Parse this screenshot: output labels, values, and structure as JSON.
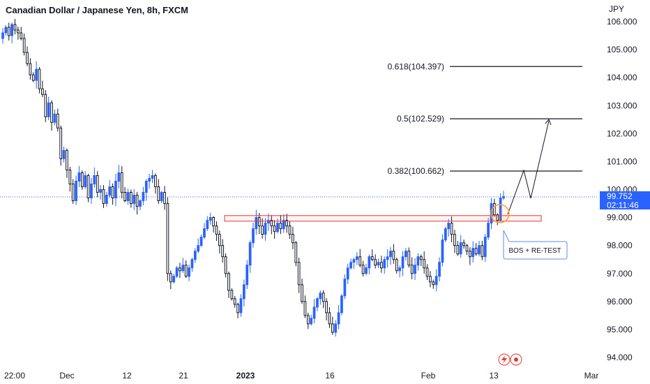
{
  "header": {
    "symbol_title": "Canadian Dollar / Japanese Yen, 8h, FXCM",
    "currency": "JPY"
  },
  "price_tag": {
    "price": "99.752",
    "countdown": "02:11:46"
  },
  "colors": {
    "up": "#2962ff",
    "down": "#131722",
    "zone": "#e53935",
    "bubble": "#5b8def",
    "circle": "#f3a33d"
  },
  "chart_data": {
    "type": "candlestick",
    "title": "Canadian Dollar / Japanese Yen, 8h, FXCM",
    "y_unit": "JPY",
    "ylim": [
      93.6,
      106.5
    ],
    "y_ticks": [
      "106.000",
      "105.000",
      "104.000",
      "103.000",
      "102.000",
      "101.000",
      "100.000",
      "99.000",
      "98.000",
      "97.000",
      "96.000",
      "95.000",
      "94.000"
    ],
    "x_ticks": [
      "22:00",
      "Dec",
      "12",
      "21",
      "2023",
      "16",
      "Feb",
      "13",
      "Mar"
    ],
    "last_price": 99.752,
    "closes": [
      105.6,
      105.8,
      105.5,
      105.9,
      105.7,
      105.6,
      105.4,
      104.9,
      104.5,
      104.1,
      103.9,
      104.3,
      103.6,
      103.4,
      102.6,
      103.1,
      102.4,
      102.7,
      102.2,
      101.1,
      101.4,
      100.7,
      100.2,
      99.6,
      100.3,
      100.6,
      100.1,
      100.5,
      99.7,
      100.2,
      100.5,
      99.9,
      100.0,
      99.5,
      99.8,
      100.1,
      99.7,
      100.3,
      100.6,
      99.9,
      99.6,
      99.9,
      99.5,
      99.8,
      99.4,
      99.6,
      99.9,
      100.3,
      100.4,
      100.5,
      100.1,
      99.6,
      99.9,
      99.5,
      97.0,
      96.7,
      96.9,
      97.2,
      97.1,
      97.3,
      96.9,
      97.2,
      97.5,
      97.8,
      98.0,
      98.3,
      98.6,
      98.9,
      99.0,
      98.7,
      98.4,
      98.0,
      97.6,
      97.0,
      96.4,
      96.1,
      95.9,
      95.6,
      96.1,
      96.6,
      97.3,
      98.1,
      98.6,
      99.0,
      98.7,
      98.4,
      98.8,
      98.9,
      98.7,
      98.5,
      98.8,
      98.6,
      98.9,
      98.7,
      98.4,
      98.1,
      97.4,
      96.6,
      96.0,
      95.5,
      95.2,
      95.4,
      95.8,
      96.1,
      96.3,
      96.0,
      95.6,
      95.2,
      94.9,
      95.2,
      95.6,
      96.2,
      96.8,
      97.2,
      97.4,
      97.5,
      97.6,
      97.3,
      97.0,
      97.2,
      97.6,
      97.5,
      97.3,
      97.4,
      97.2,
      97.5,
      97.6,
      97.8,
      97.5,
      97.1,
      97.2,
      97.6,
      97.8,
      97.3,
      97.0,
      97.3,
      97.6,
      97.5,
      97.2,
      96.9,
      96.7,
      96.6,
      96.9,
      97.4,
      98.2,
      98.6,
      98.8,
      98.4,
      98.0,
      97.7,
      98.1,
      98.0,
      97.8,
      97.6,
      97.9,
      97.7,
      98.0,
      97.6,
      98.3,
      98.8,
      99.5,
      99.1,
      98.9,
      99.7,
      99.75
    ],
    "annotations": {
      "fib_levels": [
        {
          "label": "0.618(104.397)",
          "value": 104.397
        },
        {
          "label": "0.5(102.529)",
          "value": 102.529
        },
        {
          "label": "0.382(100.662)",
          "value": 100.662
        }
      ],
      "zone": [
        98.87,
        99.07
      ],
      "note": "BOS + RE-TEST"
    }
  }
}
